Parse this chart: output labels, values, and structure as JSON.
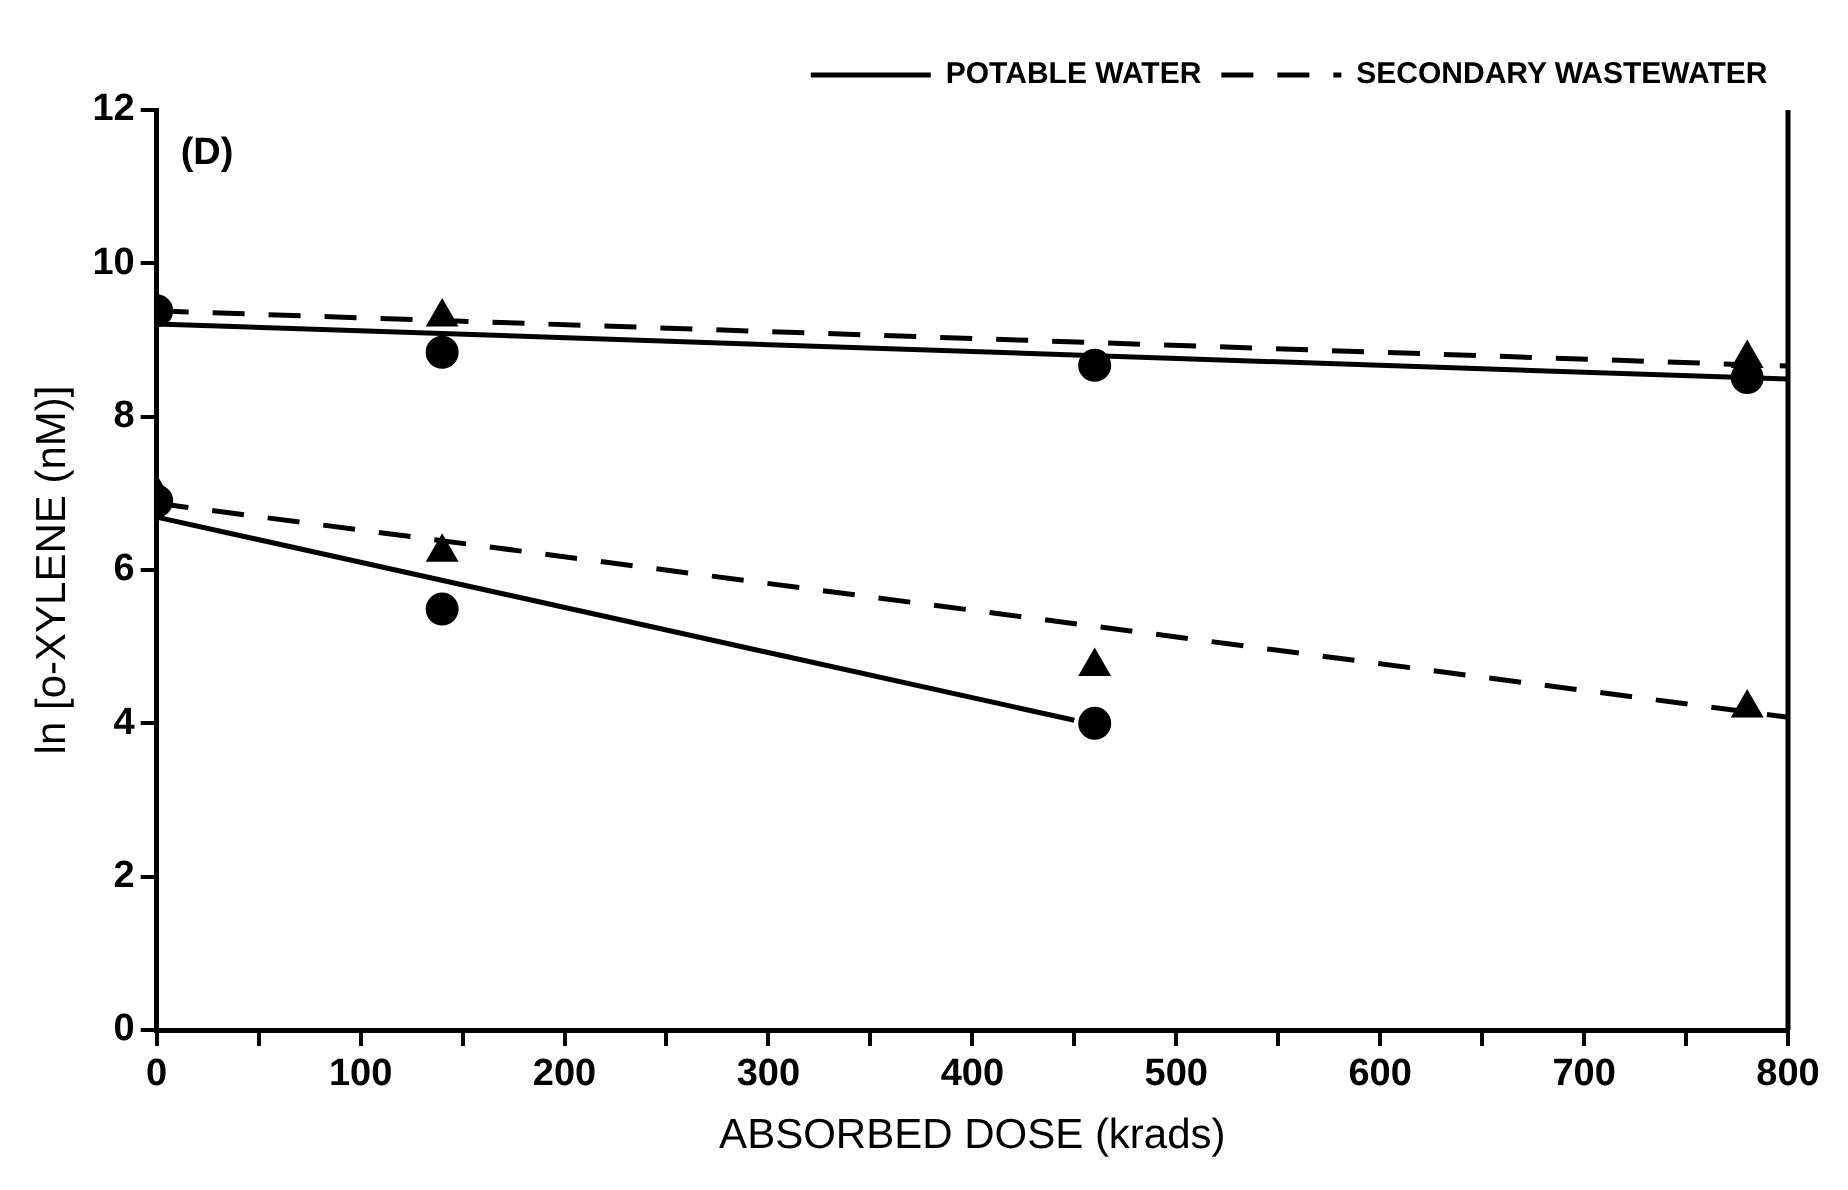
{
  "chart_data": {
    "type": "scatter",
    "xlabel": "ABSORBED DOSE (krads)",
    "ylabel": "ln [o-XYLENE (nM)]",
    "annotations": [
      "(D)"
    ],
    "xlim": [
      0,
      800
    ],
    "ylim": [
      0,
      12
    ],
    "xticks": [
      0,
      {
        "value": 50,
        "label": null
      },
      100,
      {
        "value": 150,
        "label": null
      },
      200,
      {
        "value": 250,
        "label": null
      },
      300,
      {
        "value": 350,
        "label": null
      },
      400,
      {
        "value": 450,
        "label": null
      },
      500,
      {
        "value": 550,
        "label": null
      },
      600,
      {
        "value": 650,
        "label": null
      },
      700,
      {
        "value": 750,
        "label": null
      },
      800
    ],
    "yticks": [
      0,
      2,
      4,
      6,
      8,
      10,
      12
    ],
    "grid": false,
    "legend": "top right",
    "series": [
      {
        "marker": "circle",
        "color": "#000000",
        "x": [
          0,
          140,
          460,
          780
        ],
        "values": [
          9.38,
          8.84,
          8.67,
          8.51
        ]
      },
      {
        "marker": "triangle",
        "color": "#000000",
        "x": [
          140,
          780
        ],
        "values": [
          9.3,
          8.76
        ]
      },
      {
        "marker": "circle",
        "color": "#000000",
        "x": [
          0,
          140,
          460
        ],
        "values": [
          6.9,
          5.49,
          4.0
        ]
      },
      {
        "marker": "triangle",
        "color": "#000000",
        "x": [
          0,
          140,
          460,
          780
        ],
        "values": [
          7.0,
          6.23,
          4.74,
          4.2
        ]
      },
      {
        "type": "line",
        "name": "POTABLE WATER",
        "line_style": "solid",
        "marker": "none",
        "color": "#000000",
        "x": [
          0,
          800
        ],
        "values": [
          9.21,
          8.49
        ]
      },
      {
        "type": "line",
        "name": "SECONDARY WASTEWATER",
        "line_style": "dashed",
        "marker": "none",
        "color": "#000000",
        "x": [
          0,
          800
        ],
        "values": [
          9.38,
          8.66
        ]
      },
      {
        "type": "line",
        "line_style": "solid",
        "marker": "none",
        "color": "#000000",
        "x": [
          0,
          450
        ],
        "values": [
          6.69,
          4.04
        ]
      },
      {
        "type": "line",
        "line_style": "dashed",
        "marker": "none",
        "color": "#000000",
        "x": [
          0,
          800
        ],
        "values": [
          6.87,
          4.08
        ]
      }
    ]
  }
}
